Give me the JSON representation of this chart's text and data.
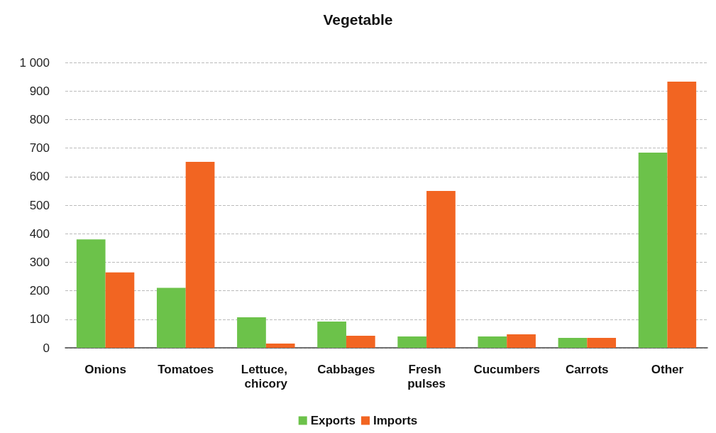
{
  "chart_data": {
    "type": "bar",
    "title": "Vegetable",
    "categories": [
      "Onions",
      "Tomatoes",
      "Lettuce, chicory",
      "Cabbages",
      "Fresh pulses",
      "Cucumbers",
      "Carrots",
      "Other"
    ],
    "series": [
      {
        "name": "Exports",
        "color": "#6cc24a",
        "values": [
          380,
          210,
          107,
          92,
          40,
          40,
          35,
          684
        ]
      },
      {
        "name": "Imports",
        "color": "#f26522",
        "values": [
          264,
          652,
          15,
          42,
          550,
          47,
          35,
          933
        ]
      }
    ],
    "ylim": [
      0,
      1000
    ],
    "yticks": [
      0,
      100,
      200,
      300,
      400,
      500,
      600,
      700,
      800,
      900,
      {
        "value": 1000,
        "label": "1 000"
      }
    ],
    "grid": "y",
    "line_style": "dashed",
    "legend": "bottom"
  }
}
